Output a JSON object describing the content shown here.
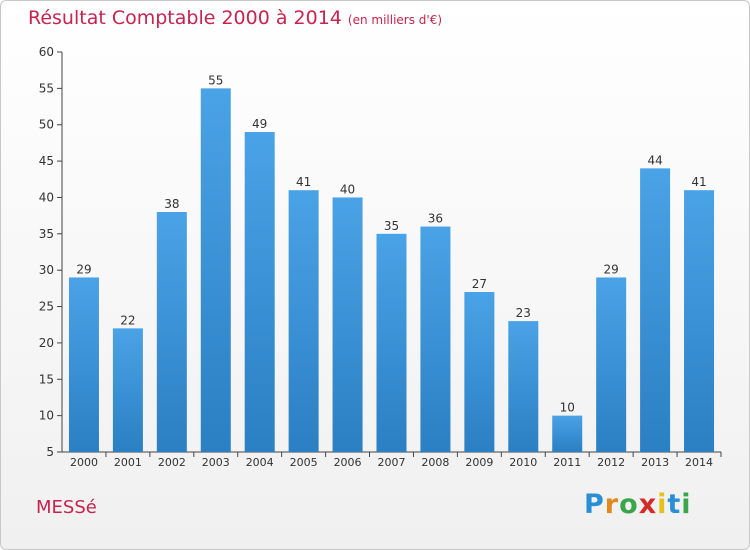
{
  "title": "Résultat Comptable 2000 à 2014",
  "unit": "(en milliers d'€)",
  "commune": "MESSé",
  "logo": {
    "text": "Proxiti",
    "letters": [
      "P",
      "r",
      "o",
      "x",
      "i",
      "t",
      "i"
    ],
    "colors": [
      "#2a8fd6",
      "#e08a1e",
      "#3aa64a",
      "#d42a2a",
      "#e3c21c",
      "#2a8fd6",
      "#3aa64a"
    ]
  },
  "colors": {
    "bar": "#4aa3e6",
    "bar_dark": "#2b7fc3",
    "title": "#c8234e",
    "axis": "#444444"
  },
  "chart_data": {
    "type": "bar",
    "title": "Résultat Comptable 2000 à 2014",
    "ylabel": "",
    "xlabel": "",
    "ylim": [
      5,
      60
    ],
    "yticks": [
      5,
      10,
      15,
      20,
      25,
      30,
      35,
      40,
      45,
      50,
      55,
      60
    ],
    "categories": [
      "2000",
      "2001",
      "2002",
      "2003",
      "2004",
      "2005",
      "2006",
      "2007",
      "2008",
      "2009",
      "2010",
      "2011",
      "2012",
      "2013",
      "2014"
    ],
    "values": [
      29,
      22,
      38,
      55,
      49,
      41,
      40,
      35,
      36,
      27,
      23,
      10,
      29,
      44,
      41
    ],
    "grid": false
  }
}
